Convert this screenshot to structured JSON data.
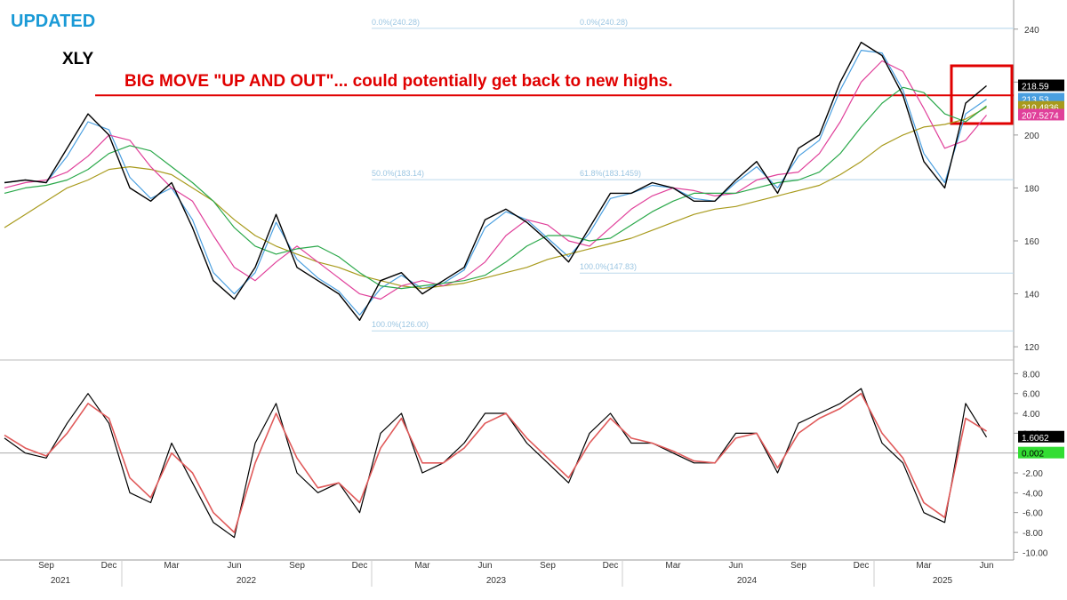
{
  "chart_data": {
    "type": "line",
    "label": "UPDATED",
    "title": "XLY",
    "headline": "BIG MOVE \"UP AND OUT\"... could potentially get back to new highs.",
    "categories": [
      null,
      null,
      "Sep",
      null,
      null,
      "Dec",
      null,
      null,
      "Mar",
      null,
      null,
      "Jun",
      null,
      null,
      "Sep",
      null,
      null,
      "Dec",
      null,
      null,
      "Mar",
      null,
      null,
      "Jun",
      null,
      null,
      "Sep",
      null,
      null,
      "Dec",
      null,
      null,
      "Mar",
      null,
      null,
      "Jun",
      null,
      null,
      "Sep",
      null,
      null,
      "Dec",
      null,
      null,
      "Mar",
      null,
      null,
      "Jun"
    ],
    "years": [
      "2021",
      "2022",
      "2023",
      "2024",
      "2025"
    ],
    "ylim": [
      115,
      251
    ],
    "yticks": [
      120,
      140,
      160,
      180,
      200,
      220,
      240
    ],
    "resistance": 215,
    "fibonacci": [
      {
        "levels": [
          {
            "value": 240.28,
            "label": "0.0%(240.28)"
          },
          {
            "value": 183.14,
            "label": "50.0%(183.14)"
          },
          {
            "value": 126.0,
            "label": "100.0%(126.00)"
          }
        ]
      },
      {
        "levels": [
          {
            "value": 240.28,
            "label": "0.0%(240.28)"
          },
          {
            "value": 183.1459,
            "label": "61.8%(183.1459)"
          },
          {
            "value": 147.83,
            "label": "100.0%(147.83)"
          }
        ]
      }
    ],
    "series": [
      {
        "color": "#4a9fe0",
        "tag": true,
        "values": [
          182,
          183,
          182,
          192,
          205,
          202,
          184,
          176,
          180,
          168,
          148,
          140,
          148,
          167,
          153,
          146,
          141,
          132,
          142,
          147,
          142,
          144,
          149,
          165,
          171,
          168,
          161,
          154,
          163,
          176,
          178,
          181,
          180,
          176,
          175,
          182,
          188,
          180,
          192,
          198,
          217,
          232,
          231,
          217,
          193,
          182,
          208,
          213.53
        ]
      },
      {
        "color": "#a89a1c",
        "tag": true,
        "values": [
          165,
          170,
          175,
          180,
          183,
          187,
          188,
          187,
          185,
          180,
          175,
          168,
          162,
          158,
          155,
          152,
          150,
          147,
          145,
          143,
          142,
          143,
          144,
          146,
          148,
          150,
          153,
          155,
          157,
          159,
          161,
          164,
          167,
          170,
          172,
          173,
          175,
          177,
          179,
          181,
          185,
          190,
          196,
          200,
          203,
          204,
          206,
          210.4836
        ]
      },
      {
        "color": "#e0409a",
        "tag": true,
        "values": [
          180,
          182,
          183,
          186,
          192,
          200,
          198,
          188,
          180,
          175,
          162,
          150,
          145,
          152,
          158,
          152,
          146,
          140,
          138,
          143,
          145,
          143,
          146,
          152,
          162,
          168,
          166,
          160,
          158,
          165,
          172,
          177,
          180,
          179,
          177,
          178,
          183,
          185,
          186,
          193,
          205,
          220,
          228,
          224,
          210,
          195,
          198,
          207.5274
        ]
      },
      {
        "color": "#2aa84a",
        "tag": false,
        "values": [
          178,
          180,
          181,
          183,
          187,
          193,
          196,
          194,
          188,
          182,
          175,
          165,
          158,
          155,
          157,
          158,
          154,
          148,
          143,
          142,
          143,
          144,
          145,
          147,
          152,
          158,
          162,
          162,
          160,
          161,
          166,
          171,
          175,
          178,
          178,
          178,
          180,
          182,
          183,
          186,
          193,
          203,
          212,
          218,
          216,
          208,
          205,
          211
        ]
      },
      {
        "color": "#000000",
        "tag": true,
        "values": [
          182,
          183,
          182,
          195,
          208,
          200,
          180,
          175,
          182,
          165,
          145,
          138,
          150,
          170,
          150,
          145,
          140,
          130,
          145,
          148,
          140,
          145,
          150,
          168,
          172,
          167,
          160,
          152,
          165,
          178,
          178,
          182,
          180,
          175,
          175,
          183,
          190,
          178,
          195,
          200,
          220,
          235,
          230,
          215,
          190,
          180,
          212,
          218.59
        ]
      }
    ],
    "oscillator": {
      "ylim": [
        -10.6,
        9.2
      ],
      "yticks": [
        {
          "value": 8,
          "label": "8.00"
        },
        {
          "value": 6,
          "label": "6.00"
        },
        {
          "value": 4,
          "label": "4.00"
        },
        {
          "value": 2,
          "label": "2.00"
        },
        {
          "value": 0,
          "label": "0.00"
        },
        {
          "value": -2,
          "label": "-2.00"
        },
        {
          "value": -4,
          "label": "-4.00"
        },
        {
          "value": -6,
          "label": "-6.00"
        },
        {
          "value": -8,
          "label": "-8.00"
        },
        {
          "value": -10,
          "label": "-10.00"
        }
      ],
      "series": [
        {
          "color": "#000000",
          "tag": true,
          "values": [
            1.5,
            0,
            -0.5,
            3,
            6,
            3,
            -4,
            -5,
            1,
            -3,
            -7,
            -8.5,
            1,
            5,
            -2,
            -4,
            -3,
            -6,
            2,
            4,
            -2,
            -1,
            1,
            4,
            4,
            1,
            -1,
            -3,
            2,
            4,
            1,
            1,
            0,
            -1,
            -1,
            2,
            2,
            -2,
            3,
            4,
            5,
            6.5,
            1,
            -1,
            -6,
            -7,
            5,
            1.6062
          ]
        },
        {
          "color": "#e05a5a",
          "tag": false,
          "values": [
            1.8,
            0.5,
            -0.3,
            2,
            5,
            3.5,
            -2.5,
            -4.5,
            0,
            -2,
            -6,
            -8,
            -1,
            4,
            -0.5,
            -3.5,
            -3,
            -5,
            0.5,
            3.5,
            -1,
            -1,
            0.5,
            3,
            4,
            1.5,
            -0.5,
            -2.5,
            1,
            3.5,
            1.5,
            1,
            0.2,
            -0.8,
            -1,
            1.5,
            2,
            -1.5,
            2,
            3.5,
            4.5,
            6,
            2,
            -0.5,
            -5,
            -6.5,
            3.5,
            2.2
          ]
        }
      ],
      "zero_tag": 0.002
    }
  }
}
